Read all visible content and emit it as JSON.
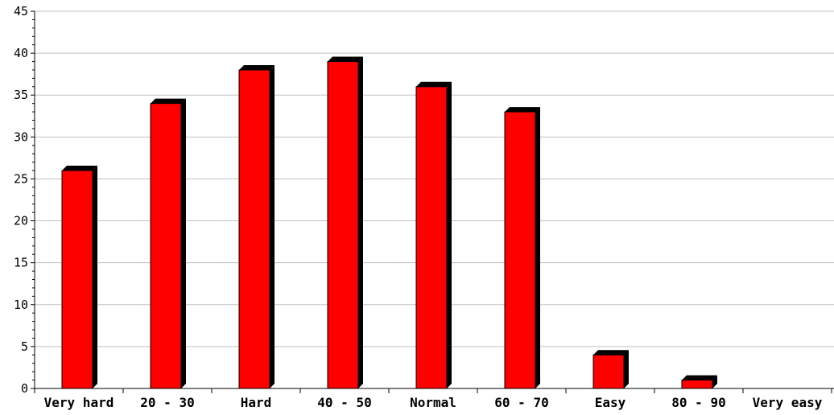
{
  "chart_data": {
    "type": "bar",
    "categories": [
      "Very hard",
      "20 - 30",
      "Hard",
      "40 - 50",
      "Normal",
      "60 - 70",
      "Easy",
      "80 - 90",
      "Very easy"
    ],
    "values": [
      26,
      34,
      38,
      39,
      36,
      33,
      4,
      1,
      0
    ],
    "title": "",
    "xlabel": "",
    "ylabel": "",
    "ylim": [
      0,
      45
    ],
    "yticks": [
      "0",
      "5",
      "10",
      "15",
      "20",
      "25",
      "30",
      "35",
      "40",
      "45"
    ],
    "grid": true,
    "legend": "none",
    "colors": {
      "bar_face": "#ff0000",
      "bar_shadow": "#000000",
      "grid": "#c0c0c0",
      "axis": "#000000",
      "background": "#ffffff"
    }
  }
}
